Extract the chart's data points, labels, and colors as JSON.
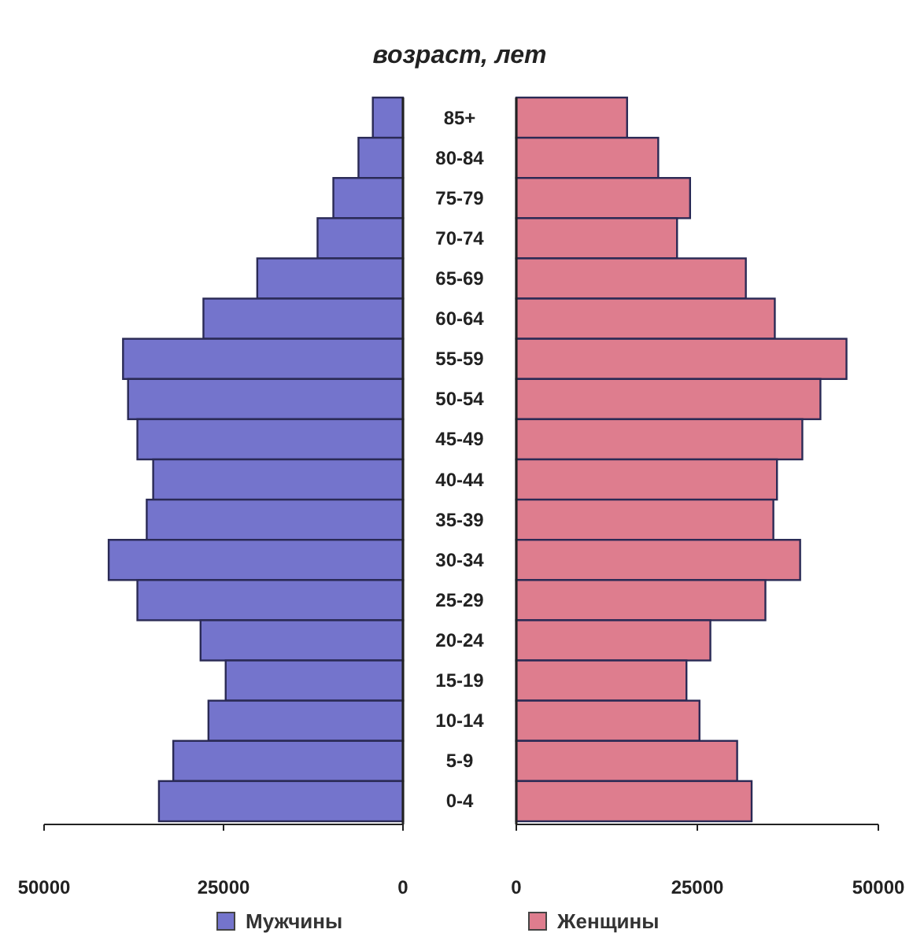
{
  "chart_data": [
    {
      "type": "bar",
      "orientation": "horizontal",
      "title": "возраст, лет",
      "categories": [
        null,
        null,
        null,
        null,
        null,
        null,
        null,
        null,
        null,
        null,
        null,
        null,
        null,
        null,
        null,
        null,
        null,
        null
      ],
      "series": [
        {
          "name": "Мужчины",
          "color": "#7474cc",
          "values": [
            4200,
            6200,
            9700,
            11900,
            20300,
            27800,
            39000,
            38300,
            37000,
            34800,
            35700,
            41000,
            37000,
            28200,
            24700,
            27100,
            32000,
            34000
          ]
        }
      ],
      "xlim": [
        50000,
        0
      ],
      "xticks": [
        50000,
        25000,
        0
      ],
      "tick_labels": "x",
      "legend": "bottom",
      "grid": false
    },
    {
      "type": "bar",
      "orientation": "horizontal",
      "categories": [
        "85+",
        "80-84",
        "75-79",
        "70-74",
        "65-69",
        "60-64",
        "55-59",
        "50-54",
        "45-49",
        "40-44",
        "35-39",
        "30-34",
        "25-29",
        "20-24",
        "15-19",
        "10-14",
        "5-9",
        "0-4"
      ],
      "series": [
        {
          "name": "Женщины",
          "color": "#de7d8e",
          "values": [
            15300,
            19600,
            24000,
            22200,
            31700,
            35700,
            45600,
            42000,
            39500,
            36000,
            35500,
            39200,
            34400,
            26800,
            23500,
            25300,
            30500,
            32500
          ]
        }
      ],
      "xlim": [
        0,
        50000
      ],
      "xticks": [
        0,
        25000,
        50000
      ],
      "legend": "bottom",
      "grid": false
    }
  ]
}
